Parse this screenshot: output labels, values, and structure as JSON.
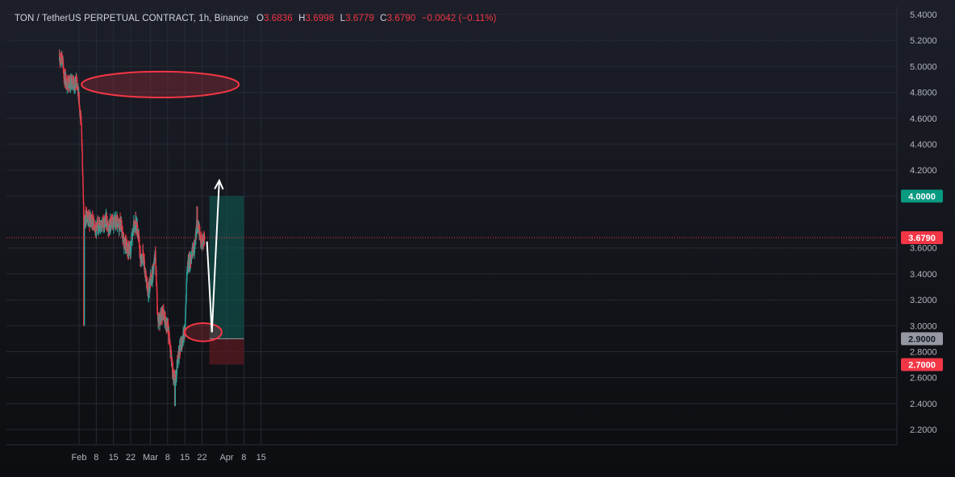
{
  "header": {
    "symbol": "TON / TetherUS PERPETUAL CONTRACT, 1h, Binance",
    "o_label": "O",
    "o_value": "3.6836",
    "h_label": "H",
    "h_value": "3.6998",
    "l_label": "L",
    "l_value": "3.6779",
    "c_label": "C",
    "c_value": "3.6790",
    "change": "−0.0042 (−0.11%)"
  },
  "colors": {
    "up": "#26a69a",
    "down": "#f23645",
    "ellipse": "#f23645",
    "target_zone": "#0f5a52",
    "stop_zone": "#5a1a22",
    "arrow": "#ffffff",
    "price_line": "#f23645"
  },
  "chart_data": {
    "type": "candlestick",
    "interval": "1h",
    "ylim": [
      2.1,
      5.45
    ],
    "y_ticks": [
      "5.4000",
      "5.2000",
      "5.0000",
      "4.8000",
      "4.6000",
      "4.4000",
      "4.2000",
      "3.6000",
      "3.4000",
      "3.2000",
      "3.0000",
      "2.8000",
      "2.6000",
      "2.4000",
      "2.2000"
    ],
    "x_ticks": [
      {
        "label": "Feb",
        "date": "2024-02-01"
      },
      {
        "label": "8",
        "date": "2024-02-08"
      },
      {
        "label": "15",
        "date": "2024-02-15"
      },
      {
        "label": "22",
        "date": "2024-02-22"
      },
      {
        "label": "Mar",
        "date": "2024-03-01"
      },
      {
        "label": "8",
        "date": "2024-03-08"
      },
      {
        "label": "15",
        "date": "2024-03-15"
      },
      {
        "label": "22",
        "date": "2024-03-22"
      },
      {
        "label": "Apr",
        "date": "2024-04-01"
      },
      {
        "label": "8",
        "date": "2024-04-08"
      },
      {
        "label": "15",
        "date": "2024-04-15"
      }
    ],
    "price_path": [
      [
        "2024-01-24",
        5.05
      ],
      [
        "2024-01-25",
        5.08
      ],
      [
        "2024-01-26",
        4.92
      ],
      [
        "2024-01-27",
        4.88
      ],
      [
        "2024-01-28",
        4.85
      ],
      [
        "2024-01-29",
        4.9
      ],
      [
        "2024-01-30",
        4.85
      ],
      [
        "2024-01-31",
        4.9
      ],
      [
        "2024-02-01",
        4.75
      ],
      [
        "2024-02-02",
        4.5
      ],
      [
        "2024-02-03",
        3.8
      ],
      [
        "2024-02-04",
        3.85
      ],
      [
        "2024-02-05",
        3.8
      ],
      [
        "2024-02-06",
        3.82
      ],
      [
        "2024-02-07",
        3.78
      ],
      [
        "2024-02-08",
        3.75
      ],
      [
        "2024-02-09",
        3.78
      ],
      [
        "2024-02-10",
        3.8
      ],
      [
        "2024-02-11",
        3.77
      ],
      [
        "2024-02-12",
        3.82
      ],
      [
        "2024-02-13",
        3.75
      ],
      [
        "2024-02-14",
        3.8
      ],
      [
        "2024-02-15",
        3.78
      ],
      [
        "2024-02-16",
        3.8
      ],
      [
        "2024-02-17",
        3.77
      ],
      [
        "2024-02-18",
        3.8
      ],
      [
        "2024-02-19",
        3.65
      ],
      [
        "2024-02-20",
        3.62
      ],
      [
        "2024-02-21",
        3.58
      ],
      [
        "2024-02-22",
        3.6
      ],
      [
        "2024-02-23",
        3.75
      ],
      [
        "2024-02-24",
        3.8
      ],
      [
        "2024-02-25",
        3.72
      ],
      [
        "2024-02-26",
        3.5
      ],
      [
        "2024-02-27",
        3.55
      ],
      [
        "2024-02-28",
        3.4
      ],
      [
        "2024-02-29",
        3.25
      ],
      [
        "2024-03-01",
        3.35
      ],
      [
        "2024-03-02",
        3.4
      ],
      [
        "2024-03-03",
        3.55
      ],
      [
        "2024-03-04",
        3.05
      ],
      [
        "2024-03-05",
        3.05
      ],
      [
        "2024-03-06",
        3.1
      ],
      [
        "2024-03-07",
        3.05
      ],
      [
        "2024-03-08",
        3.0
      ],
      [
        "2024-03-09",
        2.85
      ],
      [
        "2024-03-10",
        2.65
      ],
      [
        "2024-03-11",
        2.55
      ],
      [
        "2024-03-12",
        2.72
      ],
      [
        "2024-03-13",
        2.82
      ],
      [
        "2024-03-14",
        2.88
      ],
      [
        "2024-03-15",
        2.97
      ],
      [
        "2024-03-16",
        3.45
      ],
      [
        "2024-03-17",
        3.5
      ],
      [
        "2024-03-18",
        3.55
      ],
      [
        "2024-03-19",
        3.6
      ],
      [
        "2024-03-20",
        3.8
      ],
      [
        "2024-03-21",
        3.72
      ],
      [
        "2024-03-22",
        3.62
      ],
      [
        "2024-03-23",
        3.68
      ]
    ],
    "last_price": 3.679,
    "price_badges": [
      {
        "label": "4.0000",
        "kind": "target"
      },
      {
        "label": "3.6790",
        "kind": "last"
      },
      {
        "label": "2.9000",
        "kind": "entry"
      },
      {
        "label": "2.7000",
        "kind": "stop"
      }
    ],
    "position": {
      "entry": 2.9,
      "target": 4.0,
      "stop": 2.7,
      "from": "2024-03-25",
      "to": "2024-04-08"
    },
    "ellipses": [
      {
        "name": "resistance-zone",
        "from": "2024-02-02",
        "to": "2024-04-06",
        "low": 4.76,
        "high": 4.96
      },
      {
        "name": "support-zone",
        "from": "2024-03-15",
        "to": "2024-03-30",
        "low": 2.88,
        "high": 3.02
      }
    ],
    "arrows": [
      {
        "from": [
          "2024-03-24",
          3.65
        ],
        "to": [
          "2024-03-26",
          2.95
        ]
      },
      {
        "from": [
          "2024-03-26",
          2.95
        ],
        "to": [
          "2024-03-29",
          4.12
        ]
      }
    ]
  }
}
